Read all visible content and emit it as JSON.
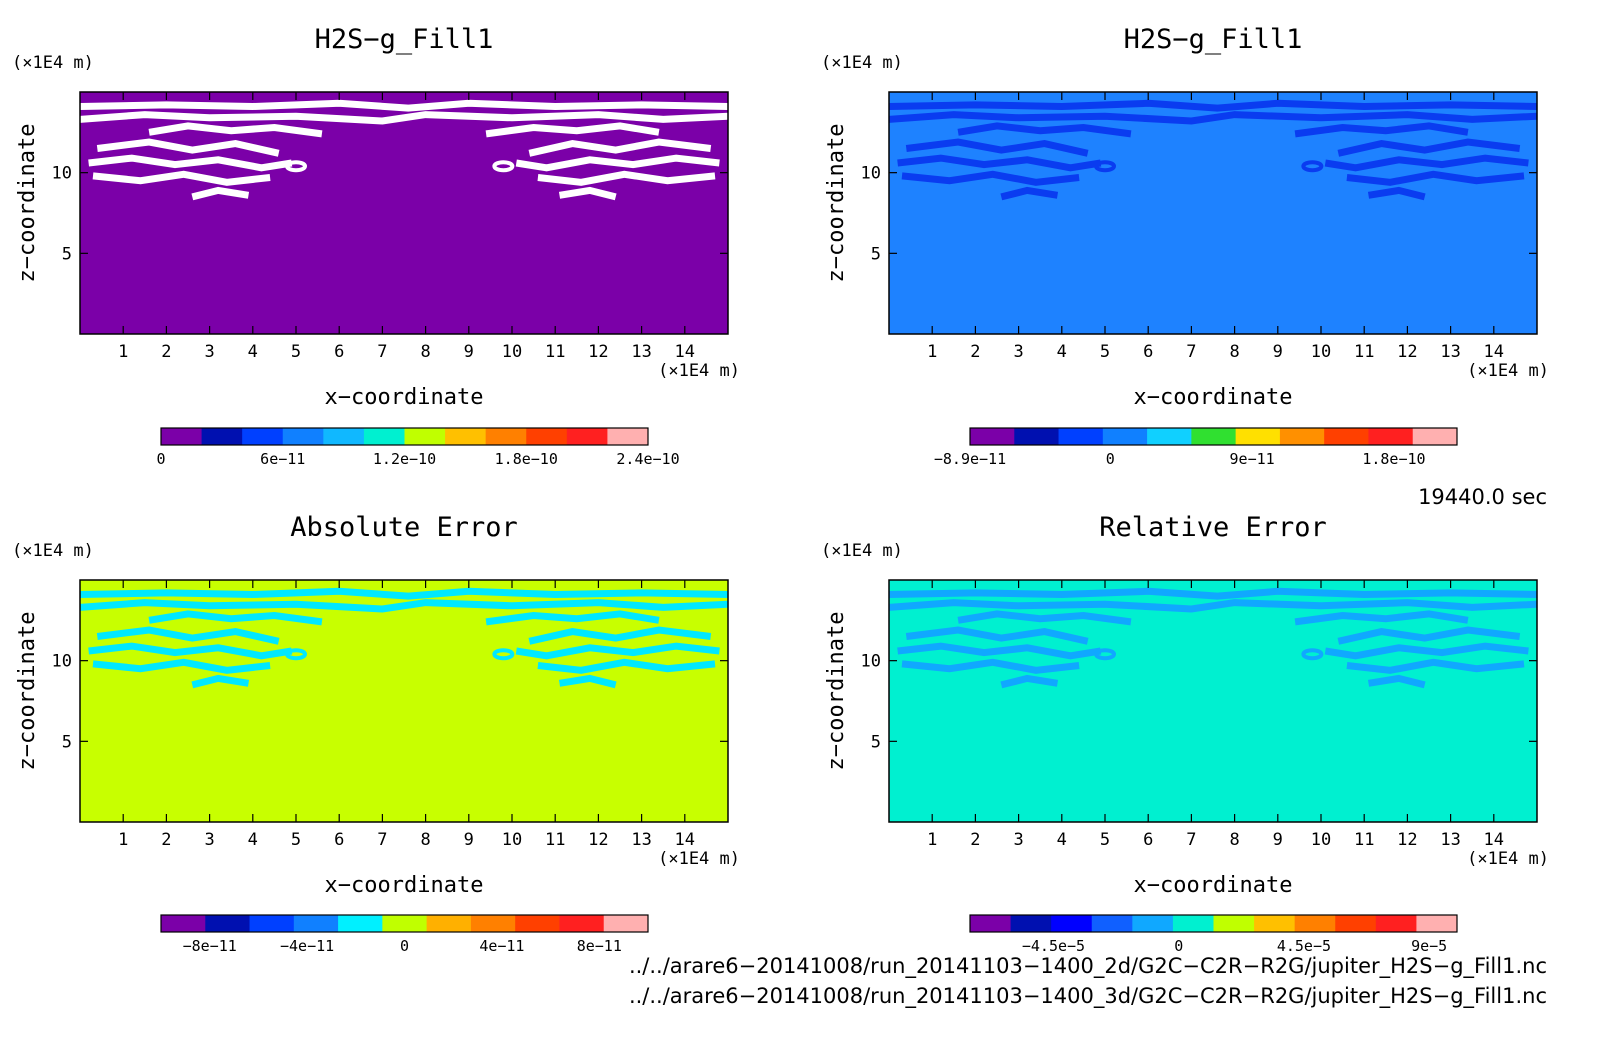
{
  "chart_data": [
    {
      "type": "heatmap",
      "title": "H2S−g_Fill1",
      "xlabel": "x−coordinate",
      "ylabel": "z−coordinate",
      "x_unit": "(×1E4 m)",
      "y_unit": "(×1E4 m)",
      "xlim": [
        0,
        15
      ],
      "ylim": [
        0,
        15
      ],
      "xticks": [
        "1",
        "2",
        "3",
        "4",
        "5",
        "6",
        "7",
        "8",
        "9",
        "10",
        "11",
        "12",
        "13",
        "14"
      ],
      "yticks": [
        "5",
        "10"
      ],
      "background_color": "#7b00a8",
      "band_color": "#ffffff",
      "colorbar": {
        "colors": [
          "#7b00a8",
          "#0010b0",
          "#0040ff",
          "#1080ff",
          "#10b8ff",
          "#00f0d0",
          "#c0ff00",
          "#ffc000",
          "#ff8000",
          "#ff4000",
          "#ff2020",
          "#ffb0b0"
        ],
        "tick_labels": [
          "0",
          "6e−11",
          "1.2e−10",
          "1.8e−10",
          "2.4e−10"
        ],
        "tick_values": [
          0,
          6e-11,
          1.2e-10,
          1.8e-10,
          2.4e-10
        ],
        "range": [
          0,
          2.4e-10
        ]
      }
    },
    {
      "type": "heatmap",
      "title": "H2S−g_Fill1",
      "xlabel": "x−coordinate",
      "ylabel": "z−coordinate",
      "x_unit": "(×1E4 m)",
      "y_unit": "(×1E4 m)",
      "xlim": [
        0,
        15
      ],
      "ylim": [
        0,
        15
      ],
      "xticks": [
        "1",
        "2",
        "3",
        "4",
        "5",
        "6",
        "7",
        "8",
        "9",
        "10",
        "11",
        "12",
        "13",
        "14"
      ],
      "yticks": [
        "5",
        "10"
      ],
      "background_color": "#1e82ff",
      "band_color": "#0a3cf0",
      "colorbar": {
        "colors": [
          "#7b00a8",
          "#0010b0",
          "#0040ff",
          "#1080ff",
          "#10d0ff",
          "#30e030",
          "#ffe000",
          "#ff9000",
          "#ff4000",
          "#ff2020",
          "#ffb0b0"
        ],
        "tick_labels": [
          "−8.9e−11",
          "0",
          "9e−11",
          "1.8e−10"
        ],
        "tick_values": [
          -8.9e-11,
          0,
          9e-11,
          1.8e-10
        ],
        "range": [
          -8.9e-11,
          2.2e-10
        ]
      }
    },
    {
      "type": "heatmap",
      "title": "Absolute Error",
      "xlabel": "x−coordinate",
      "ylabel": "z−coordinate",
      "x_unit": "(×1E4 m)",
      "y_unit": "(×1E4 m)",
      "xlim": [
        0,
        15
      ],
      "ylim": [
        0,
        15
      ],
      "xticks": [
        "1",
        "2",
        "3",
        "4",
        "5",
        "6",
        "7",
        "8",
        "9",
        "10",
        "11",
        "12",
        "13",
        "14"
      ],
      "yticks": [
        "5",
        "10"
      ],
      "background_color": "#c8ff00",
      "band_color": "#00e8ff",
      "colorbar": {
        "colors": [
          "#7b00a8",
          "#0010b0",
          "#0040ff",
          "#1080ff",
          "#00f0ff",
          "#c0ff00",
          "#ffb000",
          "#ff8000",
          "#ff4000",
          "#ff2020",
          "#ffb0b0"
        ],
        "tick_labels": [
          "−8e−11",
          "−4e−11",
          "0",
          "4e−11",
          "8e−11"
        ],
        "tick_values": [
          -8e-11,
          -4e-11,
          0,
          4e-11,
          8e-11
        ],
        "range": [
          -1e-10,
          1e-10
        ]
      }
    },
    {
      "type": "heatmap",
      "title": "Relative Error",
      "xlabel": "x−coordinate",
      "ylabel": "z−coordinate",
      "x_unit": "(×1E4 m)",
      "y_unit": "(×1E4 m)",
      "xlim": [
        0,
        15
      ],
      "ylim": [
        0,
        15
      ],
      "xticks": [
        "1",
        "2",
        "3",
        "4",
        "5",
        "6",
        "7",
        "8",
        "9",
        "10",
        "11",
        "12",
        "13",
        "14"
      ],
      "yticks": [
        "5",
        "10"
      ],
      "background_color": "#00f0d0",
      "band_color": "#10a8ff",
      "colorbar": {
        "colors": [
          "#7b00a8",
          "#0010b0",
          "#0000ff",
          "#1060ff",
          "#10a8ff",
          "#00f0d0",
          "#c0ff00",
          "#ffc000",
          "#ff8000",
          "#ff4000",
          "#ff2020",
          "#ffb0b0"
        ],
        "tick_labels": [
          "−4.5e−5",
          "0",
          "4.5e−5",
          "9e−5"
        ],
        "tick_values": [
          -4.5e-05,
          0,
          4.5e-05,
          9e-05
        ],
        "range": [
          -7.5e-05,
          0.0001
        ]
      }
    }
  ],
  "time_label": "19440.0 sec",
  "file_paths": [
    "../../arare6−20141008/run_20141103−1400_2d/G2C−C2R−R2G/jupiter_H2S−g_Fill1.nc",
    "../../arare6−20141008/run_20141103−1400_3d/G2C−C2R−R2G/jupiter_H2S−g_Fill1.nc"
  ]
}
